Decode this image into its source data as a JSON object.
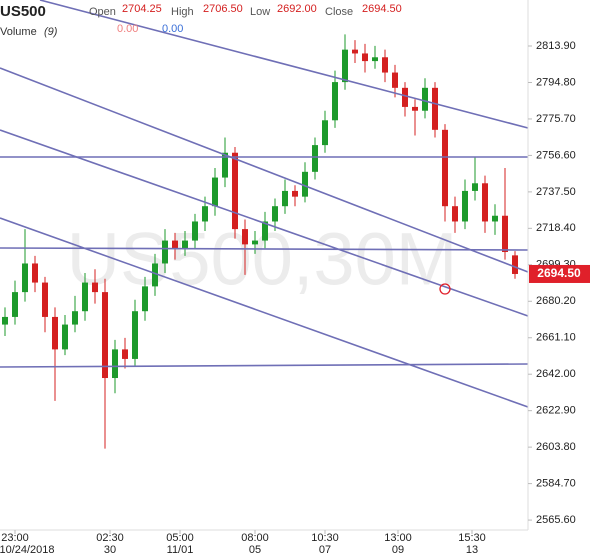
{
  "header": {
    "symbol": "US500",
    "open_label": "Open",
    "open": "2704.25",
    "high_label": "High",
    "high": "2706.50",
    "low_label": "Low",
    "low": "2692.00",
    "close_label": "Close",
    "close": "2694.50",
    "volume_label": "Volume",
    "volume_period": "(9)",
    "volume_a": "0.00",
    "volume_b": "0.00"
  },
  "chart_data": {
    "type": "candlestick",
    "watermark": "US500,30M",
    "up_color": "#1d9a2b",
    "down_color": "#d42020",
    "open": [
      2668,
      2672,
      2685,
      2700,
      2690,
      2672,
      2655,
      2668,
      2675,
      2690,
      2685,
      2640,
      2655,
      2650,
      2675,
      2688,
      2700,
      2712,
      2708,
      2712,
      2722,
      2730,
      2745,
      2758,
      2718,
      2710,
      2712,
      2722,
      2730,
      2738,
      2735,
      2748,
      2762,
      2775,
      2795,
      2812,
      2810,
      2806,
      2808,
      2800,
      2792,
      2782,
      2780,
      2792,
      2770,
      2730,
      2722,
      2738,
      2742,
      2722,
      2725,
      2704.25
    ],
    "high": [
      2677,
      2691,
      2718,
      2704,
      2693,
      2677,
      2673,
      2683,
      2695,
      2697,
      2692,
      2660,
      2661,
      2681,
      2693,
      2705,
      2718,
      2716,
      2717,
      2726,
      2735,
      2750,
      2766,
      2761,
      2723,
      2717,
      2727,
      2734,
      2744,
      2741,
      2753,
      2766,
      2780,
      2801,
      2820,
      2817,
      2815,
      2814,
      2812,
      2804,
      2795,
      2786,
      2797,
      2795,
      2773,
      2735,
      2744,
      2756,
      2746,
      2731,
      2750,
      2706.5
    ],
    "low": [
      2662,
      2668,
      2680,
      2685,
      2664,
      2628,
      2652,
      2664,
      2670,
      2679,
      2603,
      2632,
      2645,
      2646,
      2670,
      2683,
      2695,
      2702,
      2704,
      2708,
      2717,
      2725,
      2740,
      2713,
      2694,
      2705,
      2708,
      2717,
      2726,
      2730,
      2732,
      2744,
      2758,
      2771,
      2791,
      2805,
      2800,
      2802,
      2795,
      2787,
      2777,
      2767,
      2776,
      2766,
      2722,
      2716,
      2718,
      2733,
      2716,
      2715,
      2702,
      2692
    ],
    "close": [
      2672,
      2685,
      2700,
      2690,
      2672,
      2655,
      2668,
      2675,
      2690,
      2685,
      2640,
      2655,
      2650,
      2675,
      2688,
      2700,
      2712,
      2708,
      2712,
      2722,
      2730,
      2745,
      2758,
      2718,
      2710,
      2712,
      2722,
      2730,
      2738,
      2735,
      2748,
      2762,
      2775,
      2795,
      2812,
      2810,
      2806,
      2808,
      2800,
      2792,
      2782,
      2780,
      2792,
      2770,
      2730,
      2722,
      2738,
      2742,
      2722,
      2725,
      2706,
      2694.5
    ],
    "xlim": [
      -0.5,
      51.5
    ],
    "ylim": [
      2560.4,
      2838.0
    ],
    "yticks": [
      {
        "value": 2813.9,
        "label": "2813.90"
      },
      {
        "value": 2794.8,
        "label": "2794.80"
      },
      {
        "value": 2775.7,
        "label": "2775.70"
      },
      {
        "value": 2756.6,
        "label": "2756.60"
      },
      {
        "value": 2737.5,
        "label": "2737.50"
      },
      {
        "value": 2718.4,
        "label": "2718.40"
      },
      {
        "value": 2699.3,
        "label": "2699.30"
      },
      {
        "value": 2680.2,
        "label": "2680.20"
      },
      {
        "value": 2661.1,
        "label": "2661.10"
      },
      {
        "value": 2642,
        "label": "2642.00"
      },
      {
        "value": 2622.9,
        "label": "2622.90"
      },
      {
        "value": 2603.8,
        "label": "2603.80"
      },
      {
        "value": 2584.7,
        "label": "2584.70"
      },
      {
        "value": 2565.6,
        "label": "2565.60"
      }
    ],
    "xticks": [
      {
        "value": 1,
        "label": "23:00"
      },
      {
        "value": 10.5,
        "label": "02:30"
      },
      {
        "value": 17.5,
        "label": "05:00"
      },
      {
        "value": 25,
        "label": "08:00"
      },
      {
        "value": 32,
        "label": "10:30"
      },
      {
        "value": 39.3,
        "label": "13:00"
      },
      {
        "value": 46.7,
        "label": "15:30"
      }
    ],
    "xticks_dates": [
      {
        "value": 1,
        "label": "10/24/2018"
      },
      {
        "value": 10.5,
        "label": "30"
      },
      {
        "value": 17.5,
        "label": "11/01"
      },
      {
        "value": 25,
        "label": "05"
      },
      {
        "value": 32,
        "label": "07"
      },
      {
        "value": 39.3,
        "label": "09"
      },
      {
        "value": 46.7,
        "label": "13"
      }
    ],
    "last_price": {
      "value": 2694.5,
      "label": "2694.50"
    },
    "last_price_color": "#e0202a"
  }
}
